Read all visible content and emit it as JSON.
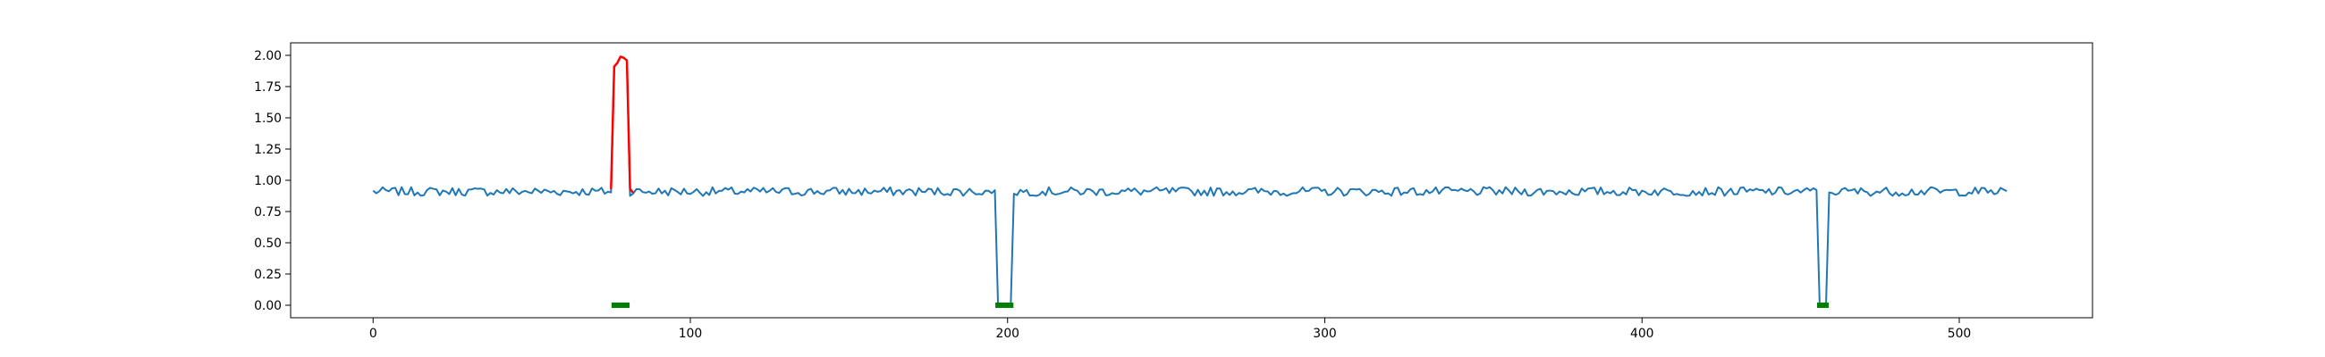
{
  "chart_data": {
    "type": "line",
    "title": "",
    "xlabel": "",
    "ylabel": "",
    "xlim": [
      -26,
      542
    ],
    "ylim": [
      -0.1,
      2.1
    ],
    "x_ticks": [
      0,
      100,
      200,
      300,
      400,
      500
    ],
    "x_tick_labels": [
      "0",
      "100",
      "200",
      "300",
      "400",
      "500"
    ],
    "y_ticks": [
      0.0,
      0.25,
      0.5,
      0.75,
      1.0,
      1.25,
      1.5,
      1.75,
      2.0
    ],
    "y_tick_labels": [
      "0.00",
      "0.25",
      "0.50",
      "0.75",
      "1.00",
      "1.25",
      "1.50",
      "1.75",
      "2.00"
    ],
    "grid": false,
    "n_points": 516,
    "baseline_mean": 0.91,
    "baseline_noise": 0.035,
    "series": [
      {
        "role": "signal",
        "color": "#1f77b4",
        "x_range": [
          0,
          515
        ]
      },
      {
        "role": "anomaly-highlight",
        "color": "#ff0000",
        "x": [
          75,
          76,
          77,
          78,
          79,
          80,
          81,
          82
        ],
        "y": [
          0.93,
          1.91,
          1.94,
          1.99,
          1.98,
          1.96,
          0.93,
          0.9
        ]
      },
      {
        "role": "flag-markers",
        "color": "#008000",
        "y": 0.0,
        "x": [
          76,
          77,
          78,
          79,
          80,
          197,
          198,
          199,
          200,
          201,
          456,
          457,
          458
        ]
      }
    ],
    "dropouts": [
      {
        "x": [
          197,
          198,
          199,
          200,
          201
        ],
        "y": 0.0
      },
      {
        "x": [
          456,
          457,
          458
        ],
        "y": 0.0
      }
    ],
    "anomaly_window": {
      "x": [
        76,
        77,
        78,
        79,
        80
      ],
      "y": [
        1.91,
        1.94,
        1.99,
        1.98,
        1.96
      ]
    }
  }
}
